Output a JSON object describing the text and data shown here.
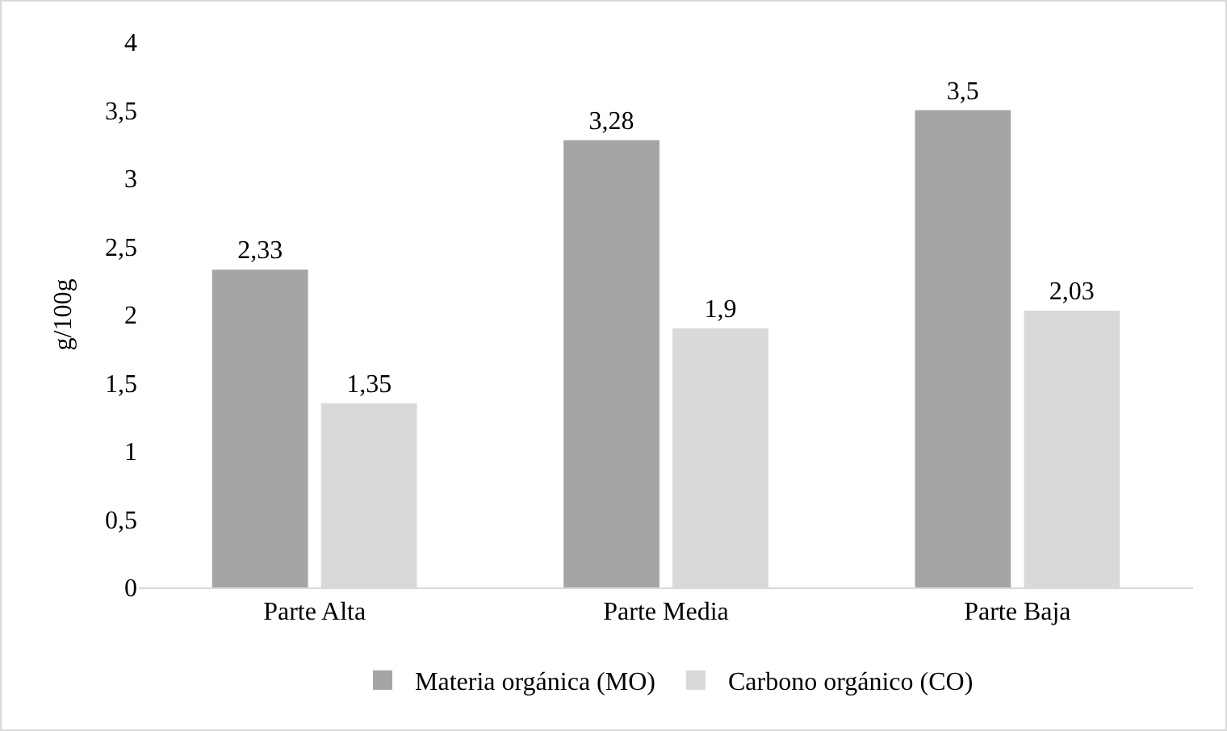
{
  "chart_data": {
    "type": "bar",
    "ylabel": "g/100g",
    "categories": [
      "Parte Alta",
      "Parte Media",
      "Parte Baja"
    ],
    "series": [
      {
        "name": "Materia orgánica (MO)",
        "color": "#a5a5a5",
        "values": [
          2.33,
          3.28,
          3.5
        ],
        "value_labels": [
          "2,33",
          "3,28",
          "3,5"
        ]
      },
      {
        "name": "Carbono orgánico (CO)",
        "color": "#d9d9d9",
        "values": [
          1.35,
          1.9,
          2.03
        ],
        "value_labels": [
          "1,35",
          "1,9",
          "2,03"
        ]
      }
    ],
    "ylim": [
      0,
      4
    ],
    "yticks": [
      0,
      {
        "value": 0.5,
        "label": "0,5"
      },
      1,
      {
        "value": 1.5,
        "label": "1,5"
      },
      2,
      {
        "value": 2.5,
        "label": "2,5"
      },
      3,
      {
        "value": 3.5,
        "label": "3,5"
      },
      4
    ],
    "grid": false,
    "legend": "bottom"
  }
}
